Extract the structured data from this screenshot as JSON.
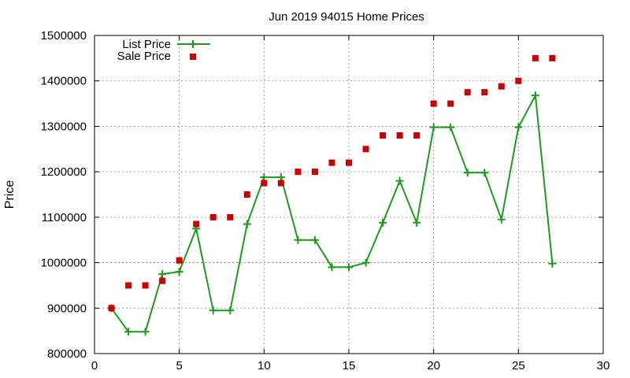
{
  "chart_data": {
    "type": "line",
    "title": "Jun 2019 94015 Home Prices",
    "xlabel": "",
    "ylabel": "Price",
    "xlim": [
      0,
      30
    ],
    "ylim": [
      800000,
      1500000
    ],
    "x_ticks": [
      0,
      5,
      10,
      15,
      20,
      25,
      30
    ],
    "y_ticks": [
      800000,
      900000,
      1000000,
      1100000,
      1200000,
      1300000,
      1400000,
      1500000
    ],
    "grid": true,
    "legend_position": "top-left",
    "series": [
      {
        "name": "List Price",
        "style": "line-with-plus-markers",
        "color": "#1a9e1a",
        "x": [
          1,
          2,
          3,
          4,
          5,
          6,
          7,
          8,
          9,
          10,
          11,
          12,
          13,
          14,
          15,
          16,
          17,
          18,
          19,
          20,
          21,
          22,
          23,
          24,
          25,
          26,
          27
        ],
        "values": [
          900000,
          848000,
          848000,
          975000,
          980000,
          1075000,
          895000,
          895000,
          1085000,
          1188000,
          1188000,
          1050000,
          1050000,
          990000,
          990000,
          1000000,
          1088000,
          1180000,
          1088000,
          1298000,
          1298000,
          1198000,
          1198000,
          1095000,
          1298000,
          1368000,
          998000
        ]
      },
      {
        "name": "Sale Price",
        "style": "square-markers",
        "color": "#cc0000",
        "x": [
          1,
          2,
          3,
          4,
          5,
          6,
          7,
          8,
          9,
          10,
          11,
          12,
          13,
          14,
          15,
          16,
          17,
          18,
          19,
          20,
          21,
          22,
          23,
          24,
          25,
          26,
          27
        ],
        "values": [
          900000,
          950000,
          950000,
          960000,
          1005000,
          1085000,
          1100000,
          1100000,
          1150000,
          1175000,
          1175000,
          1200000,
          1200000,
          1220000,
          1220000,
          1250000,
          1280000,
          1280000,
          1280000,
          1350000,
          1350000,
          1375000,
          1375000,
          1388000,
          1400000,
          1450000,
          1450000
        ]
      }
    ]
  }
}
